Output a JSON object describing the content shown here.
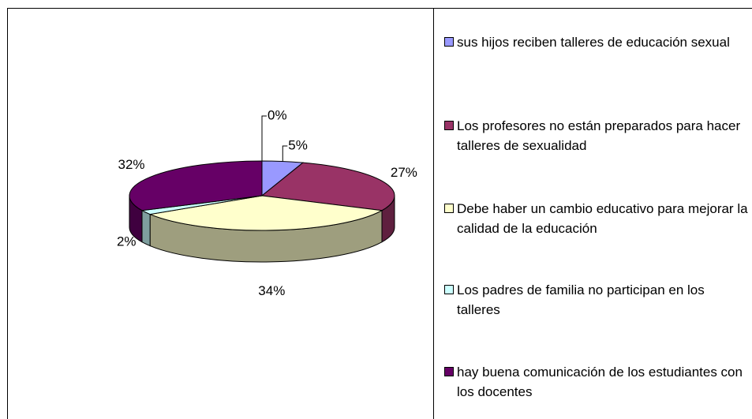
{
  "chart_data": {
    "type": "pie",
    "categories": [
      "sus hijos reciben talleres de educación sexual",
      "Los profesores no están preparados para hacer talleres de sexualidad",
      "Debe haber un cambio educativo para mejorar la calidad de la educación",
      "Los padres de familia no participan en los talleres",
      "hay buena comunicación de los estudiantes con los docentes",
      null
    ],
    "values": [
      5,
      27,
      34,
      2,
      32,
      0
    ],
    "value_labels": [
      "5%",
      "27%",
      "34%",
      "2%",
      "32%",
      "0%"
    ],
    "colors": [
      "#9999ff",
      "#993366",
      "#ffffcc",
      "#ccffff",
      "#660066",
      "#ff8080"
    ]
  }
}
